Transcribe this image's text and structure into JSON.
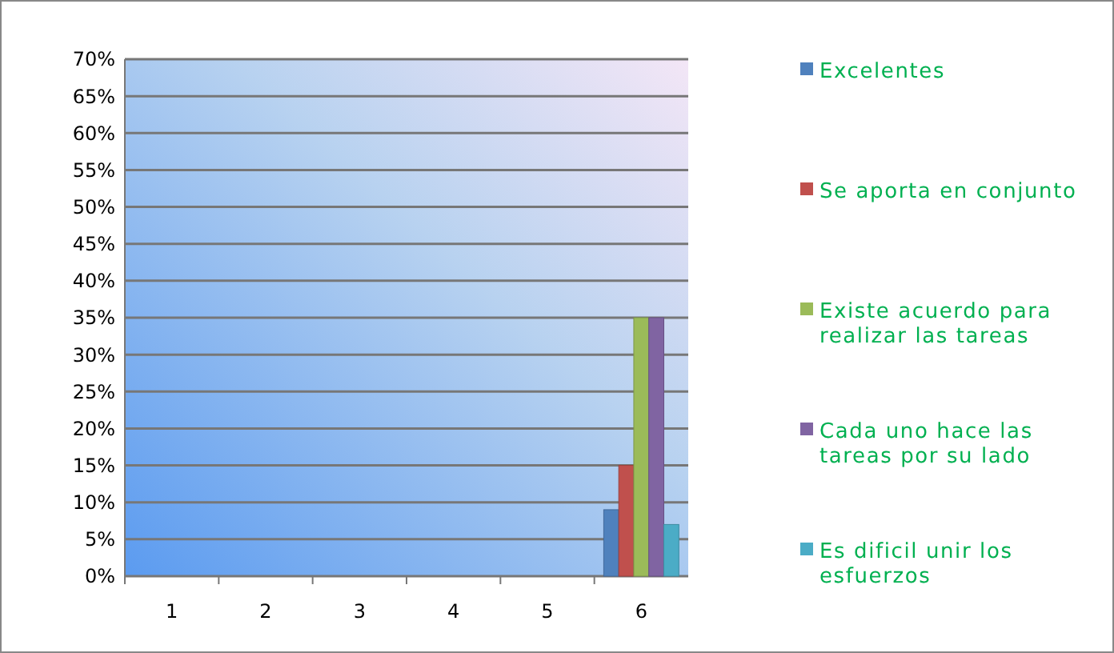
{
  "chart_data": {
    "type": "bar",
    "categories": [
      "1",
      "2",
      "3",
      "4",
      "5",
      "6"
    ],
    "series": [
      {
        "name": "Excelentes",
        "color": "#4f81bd",
        "values": [
          0,
          0,
          0,
          0,
          0,
          9
        ]
      },
      {
        "name": "Se aporta en conjunto",
        "color": "#c0504d",
        "values": [
          0,
          0,
          0,
          0,
          0,
          15
        ]
      },
      {
        "name": "Existe acuerdo para realizar las tareas",
        "color": "#9bbb59",
        "values": [
          0,
          0,
          0,
          0,
          0,
          35
        ]
      },
      {
        "name": "Cada uno hace las tareas por su lado",
        "color": "#8064a2",
        "values": [
          0,
          0,
          0,
          0,
          0,
          35
        ]
      },
      {
        "name": "Es dificil unir los esfuerzos",
        "color": "#4bacc6",
        "values": [
          0,
          0,
          0,
          0,
          0,
          7
        ]
      }
    ],
    "ylim": [
      0,
      70
    ],
    "yticks": [
      {
        "value": 0,
        "label": "0%"
      },
      {
        "value": 5,
        "label": "5%"
      },
      {
        "value": 10,
        "label": "10%"
      },
      {
        "value": 15,
        "label": "15%"
      },
      {
        "value": 20,
        "label": "20%"
      },
      {
        "value": 25,
        "label": "25%"
      },
      {
        "value": 30,
        "label": "30%"
      },
      {
        "value": 35,
        "label": "35%"
      },
      {
        "value": 40,
        "label": "40%"
      },
      {
        "value": 45,
        "label": "45%"
      },
      {
        "value": 50,
        "label": "50%"
      },
      {
        "value": 55,
        "label": "55%"
      },
      {
        "value": 60,
        "label": "60%"
      },
      {
        "value": 65,
        "label": "65%"
      },
      {
        "value": 70,
        "label": "70%"
      }
    ],
    "grid": "y",
    "legend": "right"
  }
}
